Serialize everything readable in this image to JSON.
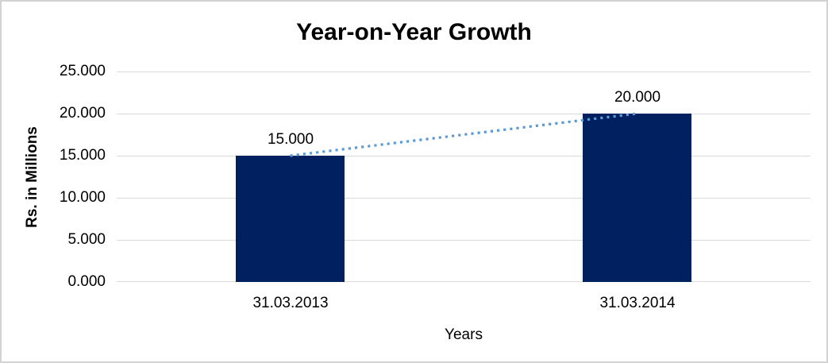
{
  "chart_data": {
    "type": "bar",
    "title": "Year-on-Year Growth",
    "xlabel": "Years",
    "ylabel": "Rs. in Millions",
    "categories": [
      "31.03.2013",
      "31.03.2014"
    ],
    "values": [
      15,
      20
    ],
    "data_labels": [
      "15.000",
      "20.000"
    ],
    "ylim": [
      0,
      25
    ],
    "ytick_labels": [
      "25.000",
      "20.000",
      "15.000",
      "10.000",
      "5.000",
      "0.000"
    ],
    "grid": true,
    "legend": false,
    "bar_color": "#002060",
    "gridline_color": "#d9d9d9",
    "frame_color": "#d3d3d3",
    "trendline": {
      "style": "dotted",
      "color": "#5b9bd5",
      "connects_values": [
        15,
        20
      ]
    }
  }
}
